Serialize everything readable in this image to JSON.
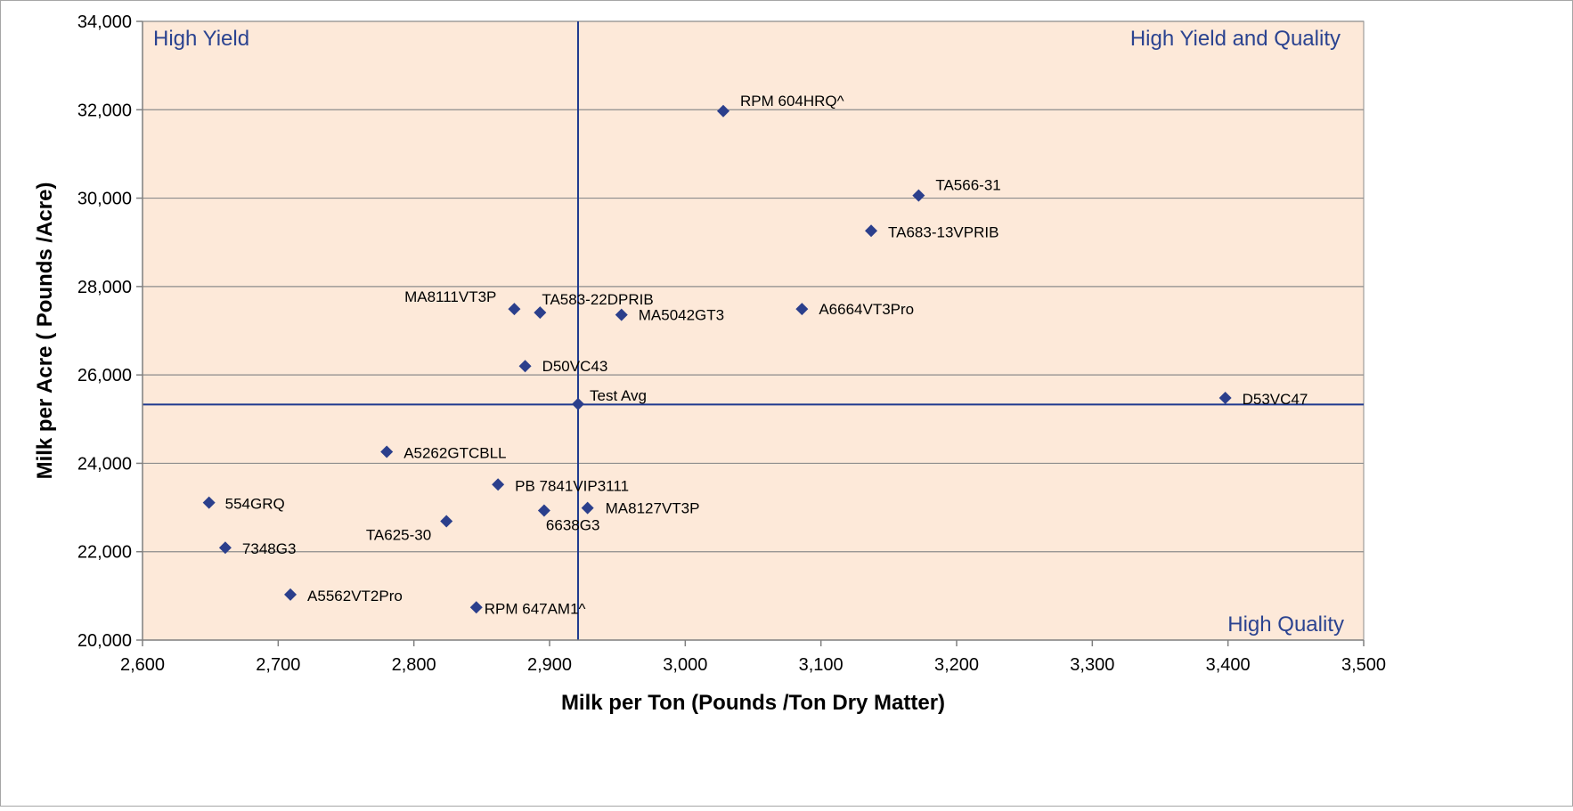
{
  "chart_data": {
    "type": "scatter",
    "xlabel": "Milk per Ton (Pounds /Ton Dry Matter)",
    "ylabel": "Milk per Acre ( Pounds /Acre)",
    "xlim": [
      2600,
      3500
    ],
    "ylim": [
      20000,
      34000
    ],
    "xticks": [
      2600,
      2700,
      2800,
      2900,
      3000,
      3100,
      3200,
      3300,
      3400,
      3500
    ],
    "yticks": [
      20000,
      22000,
      24000,
      26000,
      28000,
      30000,
      32000,
      34000
    ],
    "xtick_labels": [
      "2,600",
      "2,700",
      "2,800",
      "2,900",
      "3,000",
      "3,100",
      "3,200",
      "3,300",
      "3,400",
      "3,500"
    ],
    "ytick_labels": [
      "20,000",
      "22,000",
      "24,000",
      "26,000",
      "28,000",
      "30,000",
      "32,000",
      "34,000"
    ],
    "grid": "horizontal",
    "reference_lines": {
      "x": 2921,
      "y": 25330
    },
    "quadrant_labels": {
      "top_left": "High Yield",
      "top_right": "High Yield and Quality",
      "bottom_right": "High Quality"
    },
    "colors": {
      "plot_background": "#fde9d9",
      "marker": "#2b3f8c",
      "reference_line": "#1f3a8f",
      "quadrant_text": "#2b4390",
      "gridline": "#8c8c8c"
    },
    "points": [
      {
        "label": "RPM 604HRQ^",
        "x": 3028,
        "y": 31970
      },
      {
        "label": "TA566-31",
        "x": 3172,
        "y": 30060
      },
      {
        "label": "TA683-13VPRIB",
        "x": 3137,
        "y": 29260
      },
      {
        "label": "MA8111VT3P",
        "x": 2874,
        "y": 27490
      },
      {
        "label": "TA583-22DPRIB",
        "x": 2893,
        "y": 27410
      },
      {
        "label": "MA5042GT3",
        "x": 2953,
        "y": 27360
      },
      {
        "label": "A6664VT3Pro",
        "x": 3086,
        "y": 27490
      },
      {
        "label": "D50VC43",
        "x": 2882,
        "y": 26200
      },
      {
        "label": "Test Avg",
        "x": 2921,
        "y": 25340
      },
      {
        "label": "D53VC47",
        "x": 3398,
        "y": 25480
      },
      {
        "label": "A5262GTCBLL",
        "x": 2780,
        "y": 24260
      },
      {
        "label": "PB 7841VIP3111",
        "x": 2862,
        "y": 23520
      },
      {
        "label": "554GRQ",
        "x": 2649,
        "y": 23110
      },
      {
        "label": "MA8127VT3P",
        "x": 2928,
        "y": 22990
      },
      {
        "label": "6638G3",
        "x": 2896,
        "y": 22930
      },
      {
        "label": "TA625-30",
        "x": 2824,
        "y": 22690
      },
      {
        "label": "7348G3",
        "x": 2661,
        "y": 22090
      },
      {
        "label": "A5562VT2Pro",
        "x": 2709,
        "y": 21030
      },
      {
        "label": "RPM 647AM1^",
        "x": 2846,
        "y": 20740
      }
    ]
  }
}
